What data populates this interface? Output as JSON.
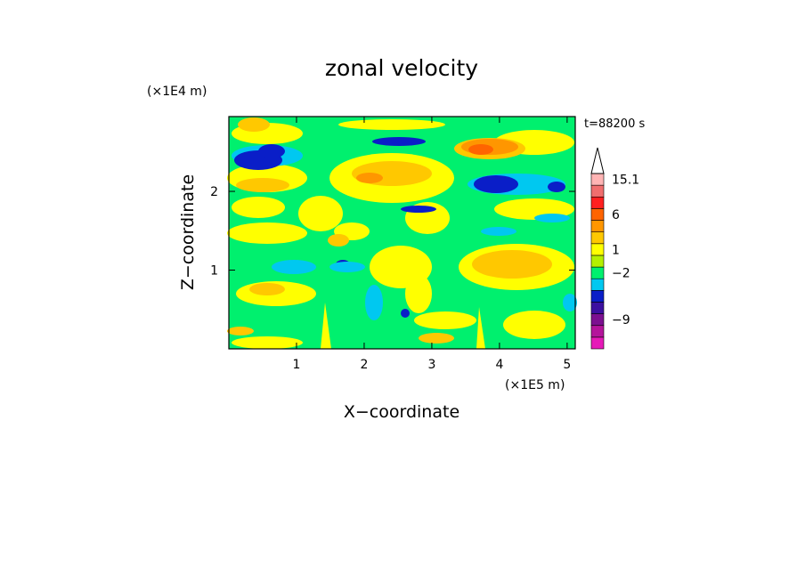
{
  "chart_data": {
    "type": "heatmap",
    "title": "zonal velocity",
    "xlabel": "X−coordinate",
    "ylabel": "Z−coordinate",
    "x_unit": "(×1E5 m)",
    "y_unit": "(×1E4 m)",
    "time_label": "t=88200 s",
    "xlim": [
      0,
      5.12
    ],
    "ylim": [
      0,
      2.95
    ],
    "x_ticks": [
      {
        "value": 1,
        "label": "1"
      },
      {
        "value": 2,
        "label": "2"
      },
      {
        "value": 3,
        "label": "3"
      },
      {
        "value": 4,
        "label": "4"
      },
      {
        "value": 5,
        "label": "5"
      }
    ],
    "y_ticks": [
      {
        "value": 1,
        "label": "1"
      },
      {
        "value": 2,
        "label": "2"
      }
    ],
    "colorbar": {
      "colors": [
        "#e619b8",
        "#b4149b",
        "#7c1090",
        "#3c10a0",
        "#0a1ec8",
        "#00c8f0",
        "#00f06e",
        "#b4f000",
        "#ffff00",
        "#ffc800",
        "#ff9600",
        "#ff6400",
        "#ff2020",
        "#f06e6e",
        "#ffb4b4",
        "#ffffff"
      ],
      "labels": [
        {
          "index": 2,
          "text": "−9"
        },
        {
          "index": 6,
          "text": "−2"
        },
        {
          "index": 8,
          "text": "1"
        },
        {
          "index": 11,
          "text": "6"
        },
        {
          "index": 14,
          "text": "15.1"
        }
      ]
    }
  }
}
